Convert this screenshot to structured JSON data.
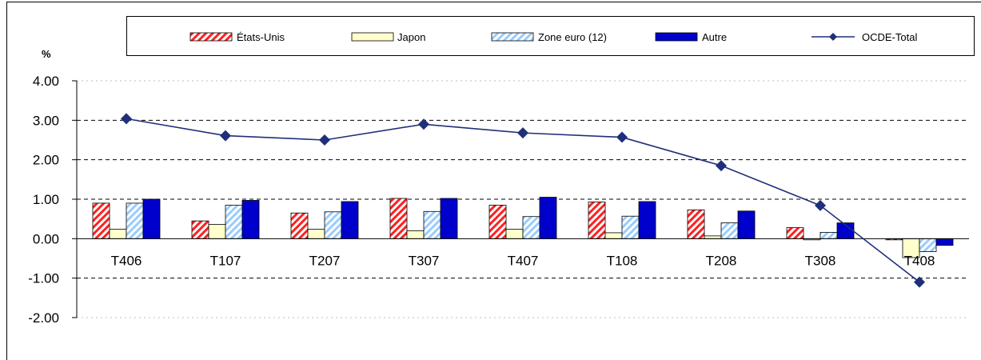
{
  "chart_data": {
    "type": "bar",
    "ylabel": "%",
    "ylim": [
      -2,
      4
    ],
    "y_ticks": [
      "4.00",
      "3.00",
      "2.00",
      "1.00",
      "0.00",
      "-1.00",
      "-2.00"
    ],
    "grid": "horizontal-dashed",
    "legend_position": "top",
    "categories": [
      "T406",
      "T107",
      "T207",
      "T307",
      "T407",
      "T108",
      "T208",
      "T308",
      "T408"
    ],
    "series": [
      {
        "name": "États-Unis",
        "type": "bar",
        "pattern": "hatch",
        "color": "#ff2020",
        "values": [
          0.9,
          0.45,
          0.65,
          1.02,
          0.85,
          0.93,
          0.73,
          0.28,
          -0.03
        ]
      },
      {
        "name": "Japon",
        "type": "bar",
        "pattern": "solid",
        "color": "#ffffcc",
        "values": [
          0.24,
          0.36,
          0.24,
          0.2,
          0.24,
          0.15,
          0.07,
          -0.03,
          -0.48
        ]
      },
      {
        "name": "Zone euro (12)",
        "type": "bar",
        "pattern": "hatch",
        "color": "#99ccff",
        "values": [
          0.9,
          0.85,
          0.68,
          0.69,
          0.56,
          0.57,
          0.4,
          0.16,
          -0.33
        ]
      },
      {
        "name": "Autre",
        "type": "bar",
        "pattern": "solid",
        "color": "#0000cc",
        "values": [
          1.0,
          0.97,
          0.94,
          1.02,
          1.05,
          0.94,
          0.7,
          0.4,
          -0.17
        ]
      },
      {
        "name": "OCDE-Total",
        "type": "line",
        "marker": "diamond",
        "color": "#1f2f7a",
        "values": [
          3.04,
          2.61,
          2.5,
          2.9,
          2.68,
          2.57,
          1.85,
          0.84,
          -1.1
        ]
      }
    ]
  }
}
